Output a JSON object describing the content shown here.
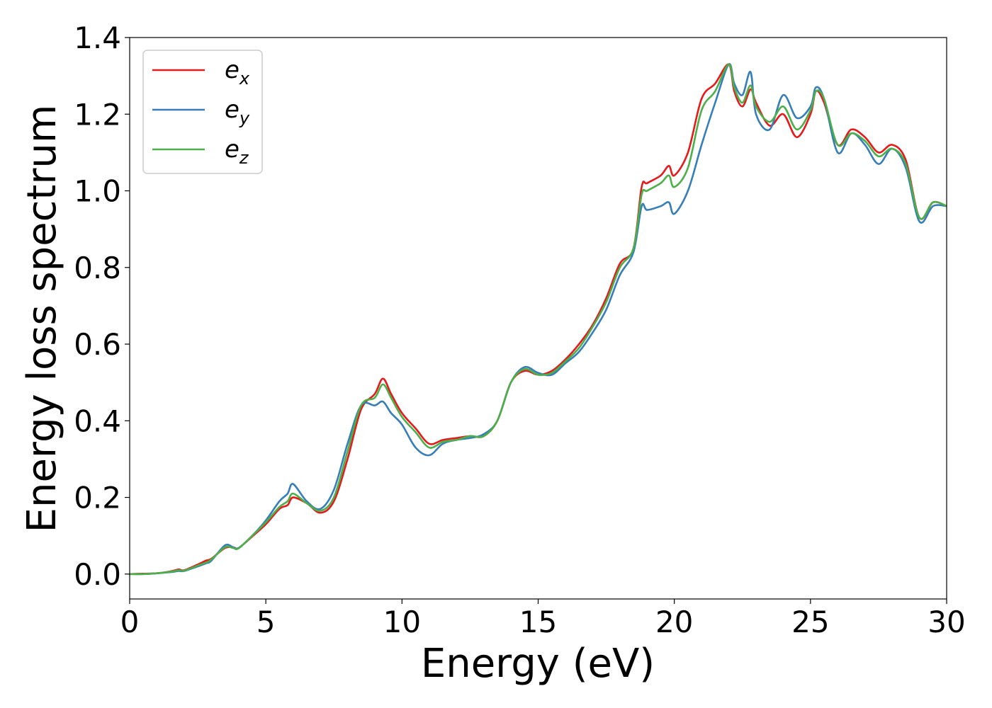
{
  "chart_data": {
    "type": "line",
    "xlabel": "Energy (eV)",
    "ylabel": "Energy loss spectrum",
    "xlim": [
      0,
      30
    ],
    "ylim": [
      -0.065,
      1.4
    ],
    "xticks": [
      "0",
      "5",
      "10",
      "15",
      "20",
      "25",
      "30"
    ],
    "yticks": [
      "0.0",
      "0.2",
      "0.4",
      "0.6",
      "0.8",
      "1.0",
      "1.2",
      "1.4"
    ],
    "grid": false,
    "legend_position": "top-left",
    "x": [
      0,
      0.5,
      1,
      1.5,
      1.8,
      2,
      2.5,
      2.8,
      3,
      3.5,
      3.8,
      4,
      4.5,
      5,
      5.5,
      5.8,
      6,
      6.5,
      7,
      7.5,
      8,
      8.5,
      9,
      9.3,
      9.6,
      10,
      10.5,
      11,
      11.5,
      12,
      12.5,
      13,
      13.5,
      14,
      14.5,
      15,
      15.5,
      16,
      16.5,
      17,
      17.5,
      18,
      18.5,
      18.8,
      19,
      19.5,
      19.8,
      20,
      20.5,
      21,
      21.5,
      22,
      22.2,
      22.5,
      22.8,
      23,
      23.5,
      24,
      24.5,
      25,
      25.2,
      25.5,
      26,
      26.5,
      27,
      27.5,
      28,
      28.5,
      29,
      29.5,
      30
    ],
    "series": [
      {
        "name": "e_x",
        "color": "#e41a1c",
        "values": [
          0.0,
          0.001,
          0.002,
          0.007,
          0.012,
          0.01,
          0.025,
          0.035,
          0.04,
          0.068,
          0.07,
          0.068,
          0.098,
          0.13,
          0.17,
          0.18,
          0.2,
          0.185,
          0.16,
          0.19,
          0.3,
          0.43,
          0.47,
          0.51,
          0.47,
          0.42,
          0.38,
          0.34,
          0.35,
          0.355,
          0.36,
          0.36,
          0.4,
          0.5,
          0.53,
          0.52,
          0.53,
          0.56,
          0.6,
          0.65,
          0.72,
          0.81,
          0.85,
          1.01,
          1.02,
          1.04,
          1.065,
          1.04,
          1.1,
          1.24,
          1.28,
          1.33,
          1.26,
          1.22,
          1.265,
          1.23,
          1.17,
          1.2,
          1.14,
          1.2,
          1.26,
          1.23,
          1.12,
          1.16,
          1.14,
          1.1,
          1.12,
          1.08,
          0.93,
          0.97,
          0.96
        ]
      },
      {
        "name": "e_y",
        "color": "#377eb8",
        "values": [
          0.0,
          0.0,
          0.002,
          0.005,
          0.008,
          0.008,
          0.02,
          0.028,
          0.035,
          0.075,
          0.07,
          0.068,
          0.1,
          0.14,
          0.19,
          0.21,
          0.235,
          0.19,
          0.17,
          0.22,
          0.34,
          0.44,
          0.44,
          0.45,
          0.42,
          0.39,
          0.33,
          0.31,
          0.34,
          0.35,
          0.355,
          0.365,
          0.4,
          0.5,
          0.54,
          0.525,
          0.52,
          0.55,
          0.58,
          0.63,
          0.69,
          0.78,
          0.84,
          0.96,
          0.95,
          0.96,
          0.97,
          0.94,
          1.0,
          1.12,
          1.23,
          1.33,
          1.28,
          1.25,
          1.31,
          1.2,
          1.16,
          1.25,
          1.19,
          1.22,
          1.27,
          1.24,
          1.1,
          1.15,
          1.12,
          1.07,
          1.11,
          1.06,
          0.92,
          0.96,
          0.96
        ]
      },
      {
        "name": "e_z",
        "color": "#4daf4a",
        "values": [
          0.0,
          0.0,
          0.002,
          0.006,
          0.01,
          0.009,
          0.022,
          0.03,
          0.038,
          0.07,
          0.068,
          0.067,
          0.1,
          0.135,
          0.175,
          0.19,
          0.21,
          0.185,
          0.165,
          0.2,
          0.32,
          0.44,
          0.46,
          0.495,
          0.46,
          0.41,
          0.37,
          0.33,
          0.345,
          0.35,
          0.36,
          0.36,
          0.4,
          0.5,
          0.535,
          0.52,
          0.525,
          0.555,
          0.59,
          0.645,
          0.71,
          0.8,
          0.85,
          0.99,
          1.0,
          1.02,
          1.04,
          1.01,
          1.06,
          1.21,
          1.26,
          1.33,
          1.27,
          1.23,
          1.275,
          1.22,
          1.18,
          1.22,
          1.16,
          1.21,
          1.26,
          1.24,
          1.12,
          1.15,
          1.13,
          1.09,
          1.11,
          1.07,
          0.93,
          0.97,
          0.96
        ]
      }
    ]
  }
}
